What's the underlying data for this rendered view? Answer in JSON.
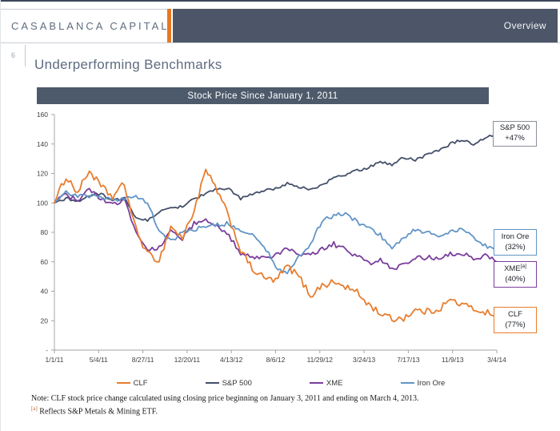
{
  "header": {
    "logo": "CASABLANCA CAPITAL",
    "nav_label": "Overview"
  },
  "slide": {
    "number": "6",
    "title": "Underperforming Benchmarks"
  },
  "chart_data": {
    "type": "line",
    "title": "Stock Price Since January 1, 2011",
    "x_tick_labels": [
      "1/1/11",
      "5/4/11",
      "8/27/11",
      "12/20/11",
      "4/13/12",
      "8/6/12",
      "11/29/12",
      "3/24/13",
      "7/17/13",
      "11/9/13",
      "3/4/14"
    ],
    "y_tick_labels_top_down": [
      "160",
      "140",
      "120",
      "100",
      "80",
      "60",
      "40",
      "20",
      "-"
    ],
    "ylim": [
      0,
      160
    ],
    "x_unit": "months since Jan 2011 (monthly anchors, Jan 2011 = index 100)",
    "grid": false,
    "legend_position": "bottom",
    "series": [
      {
        "name": "CLF",
        "color": "#e87d2e",
        "jitter": 2.4,
        "change_label": "(77%)",
        "values": [
          100,
          118,
          107,
          122,
          111,
          104,
          113,
          82,
          65,
          61,
          84,
          76,
          95,
          122,
          108,
          90,
          68,
          55,
          49,
          47,
          57,
          50,
          37,
          44,
          46,
          43,
          39,
          31,
          25,
          21,
          22,
          27,
          26,
          28,
          34,
          31,
          28,
          26,
          23
        ]
      },
      {
        "name": "S&P 500",
        "color": "#44506a",
        "jitter": 1.0,
        "change_label": "+47%",
        "values": [
          100,
          103,
          101,
          105,
          106,
          102,
          103,
          90,
          88,
          94,
          96,
          98,
          103,
          106,
          110,
          109,
          103,
          106,
          108,
          110,
          113,
          111,
          109,
          112,
          117,
          119,
          122,
          124,
          128,
          126,
          131,
          129,
          133,
          136,
          140,
          143,
          139,
          144,
          147
        ]
      },
      {
        "name": "XME",
        "color": "#7a3e9d",
        "jitter": 1.7,
        "change_label": "(40%)",
        "values": [
          100,
          106,
          101,
          109,
          103,
          98,
          103,
          80,
          68,
          70,
          81,
          76,
          86,
          89,
          85,
          77,
          66,
          62,
          62,
          64,
          70,
          66,
          64,
          69,
          72,
          68,
          64,
          59,
          61,
          55,
          58,
          62,
          63,
          62,
          65,
          66,
          62,
          64,
          60
        ]
      },
      {
        "name": "Iron Ore",
        "color": "#6295c6",
        "jitter": 1.5,
        "change_label": "(32%)",
        "values": [
          100,
          108,
          104,
          105,
          103,
          102,
          103,
          104,
          101,
          80,
          74,
          80,
          82,
          84,
          85,
          86,
          81,
          78,
          71,
          57,
          52,
          63,
          72,
          88,
          91,
          93,
          87,
          83,
          78,
          70,
          76,
          82,
          80,
          78,
          80,
          82,
          76,
          71,
          68
        ]
      }
    ]
  },
  "notes": {
    "marker": "[a]",
    "line1": "Note: CLF stock price change calculated using closing price beginning on January 3, 2011 and ending on March 4, 2013.",
    "line2": " Reflects S&P Metals & Mining ETF."
  }
}
